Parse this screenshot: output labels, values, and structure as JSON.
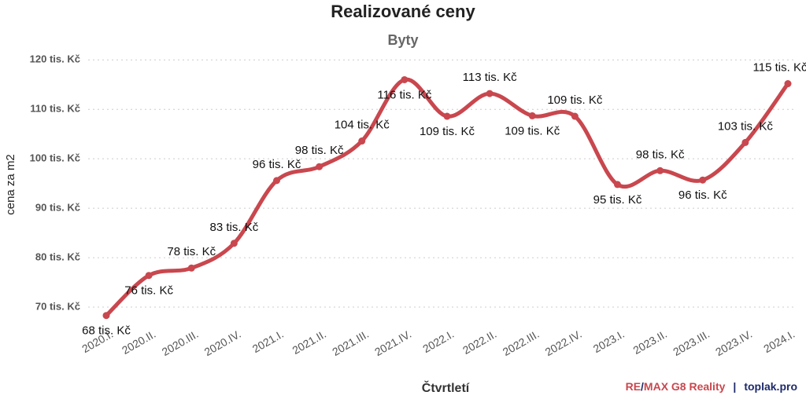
{
  "chart_data": {
    "type": "line",
    "title": "Realizované ceny",
    "subtitle": "Byty",
    "x_label": "Čtvrtletí",
    "y_label": "cena za m2",
    "categories": [
      "2020.I.",
      "2020.II.",
      "2020.III.",
      "2020.IV.",
      "2021.I.",
      "2021.II.",
      "2021.III.",
      "2021.IV.",
      "2022.I.",
      "2022.II.",
      "2022.III.",
      "2022.IV.",
      "2023.I.",
      "2023.II.",
      "2023.III.",
      "2023.IV.",
      "2024.I."
    ],
    "series": [
      {
        "name": "cena za m2",
        "color": "#c9474e",
        "values": [
          68.3,
          76.4,
          77.9,
          82.9,
          95.6,
          98.4,
          103.6,
          116.0,
          108.6,
          113.2,
          108.7,
          108.6,
          94.8,
          97.6,
          95.7,
          103.3,
          115.2
        ],
        "value_labels": [
          "68 tis. Kč",
          "76 tis. Kč",
          "78 tis. Kč",
          "83 tis. Kč",
          "96 tis. Kč",
          "98 tis. Kč",
          "104 tis. Kč",
          "116 tis. Kč",
          "109 tis. Kč",
          "113 tis. Kč",
          "109 tis. Kč",
          "109 tis. Kč",
          "95 tis. Kč",
          "98 tis. Kč",
          "96 tis. Kč",
          "103 tis. Kč",
          "115 tis. Kč"
        ]
      }
    ],
    "ylim": [
      67.3,
      121
    ],
    "yticks": [
      {
        "value": 70,
        "label": "70 tis. Kč"
      },
      {
        "value": 80,
        "label": "80 tis. Kč"
      },
      {
        "value": 90,
        "label": "90 tis. Kč"
      },
      {
        "value": 100,
        "label": "100 tis. Kč"
      },
      {
        "value": 110,
        "label": "110 tis. Kč"
      },
      {
        "value": 120,
        "label": "120 tis. Kč"
      }
    ],
    "grid": true,
    "footer": {
      "brand": [
        "RE",
        "/",
        "MAX G8 Reality"
      ],
      "separator": "|",
      "site": "toplak.pro"
    }
  }
}
